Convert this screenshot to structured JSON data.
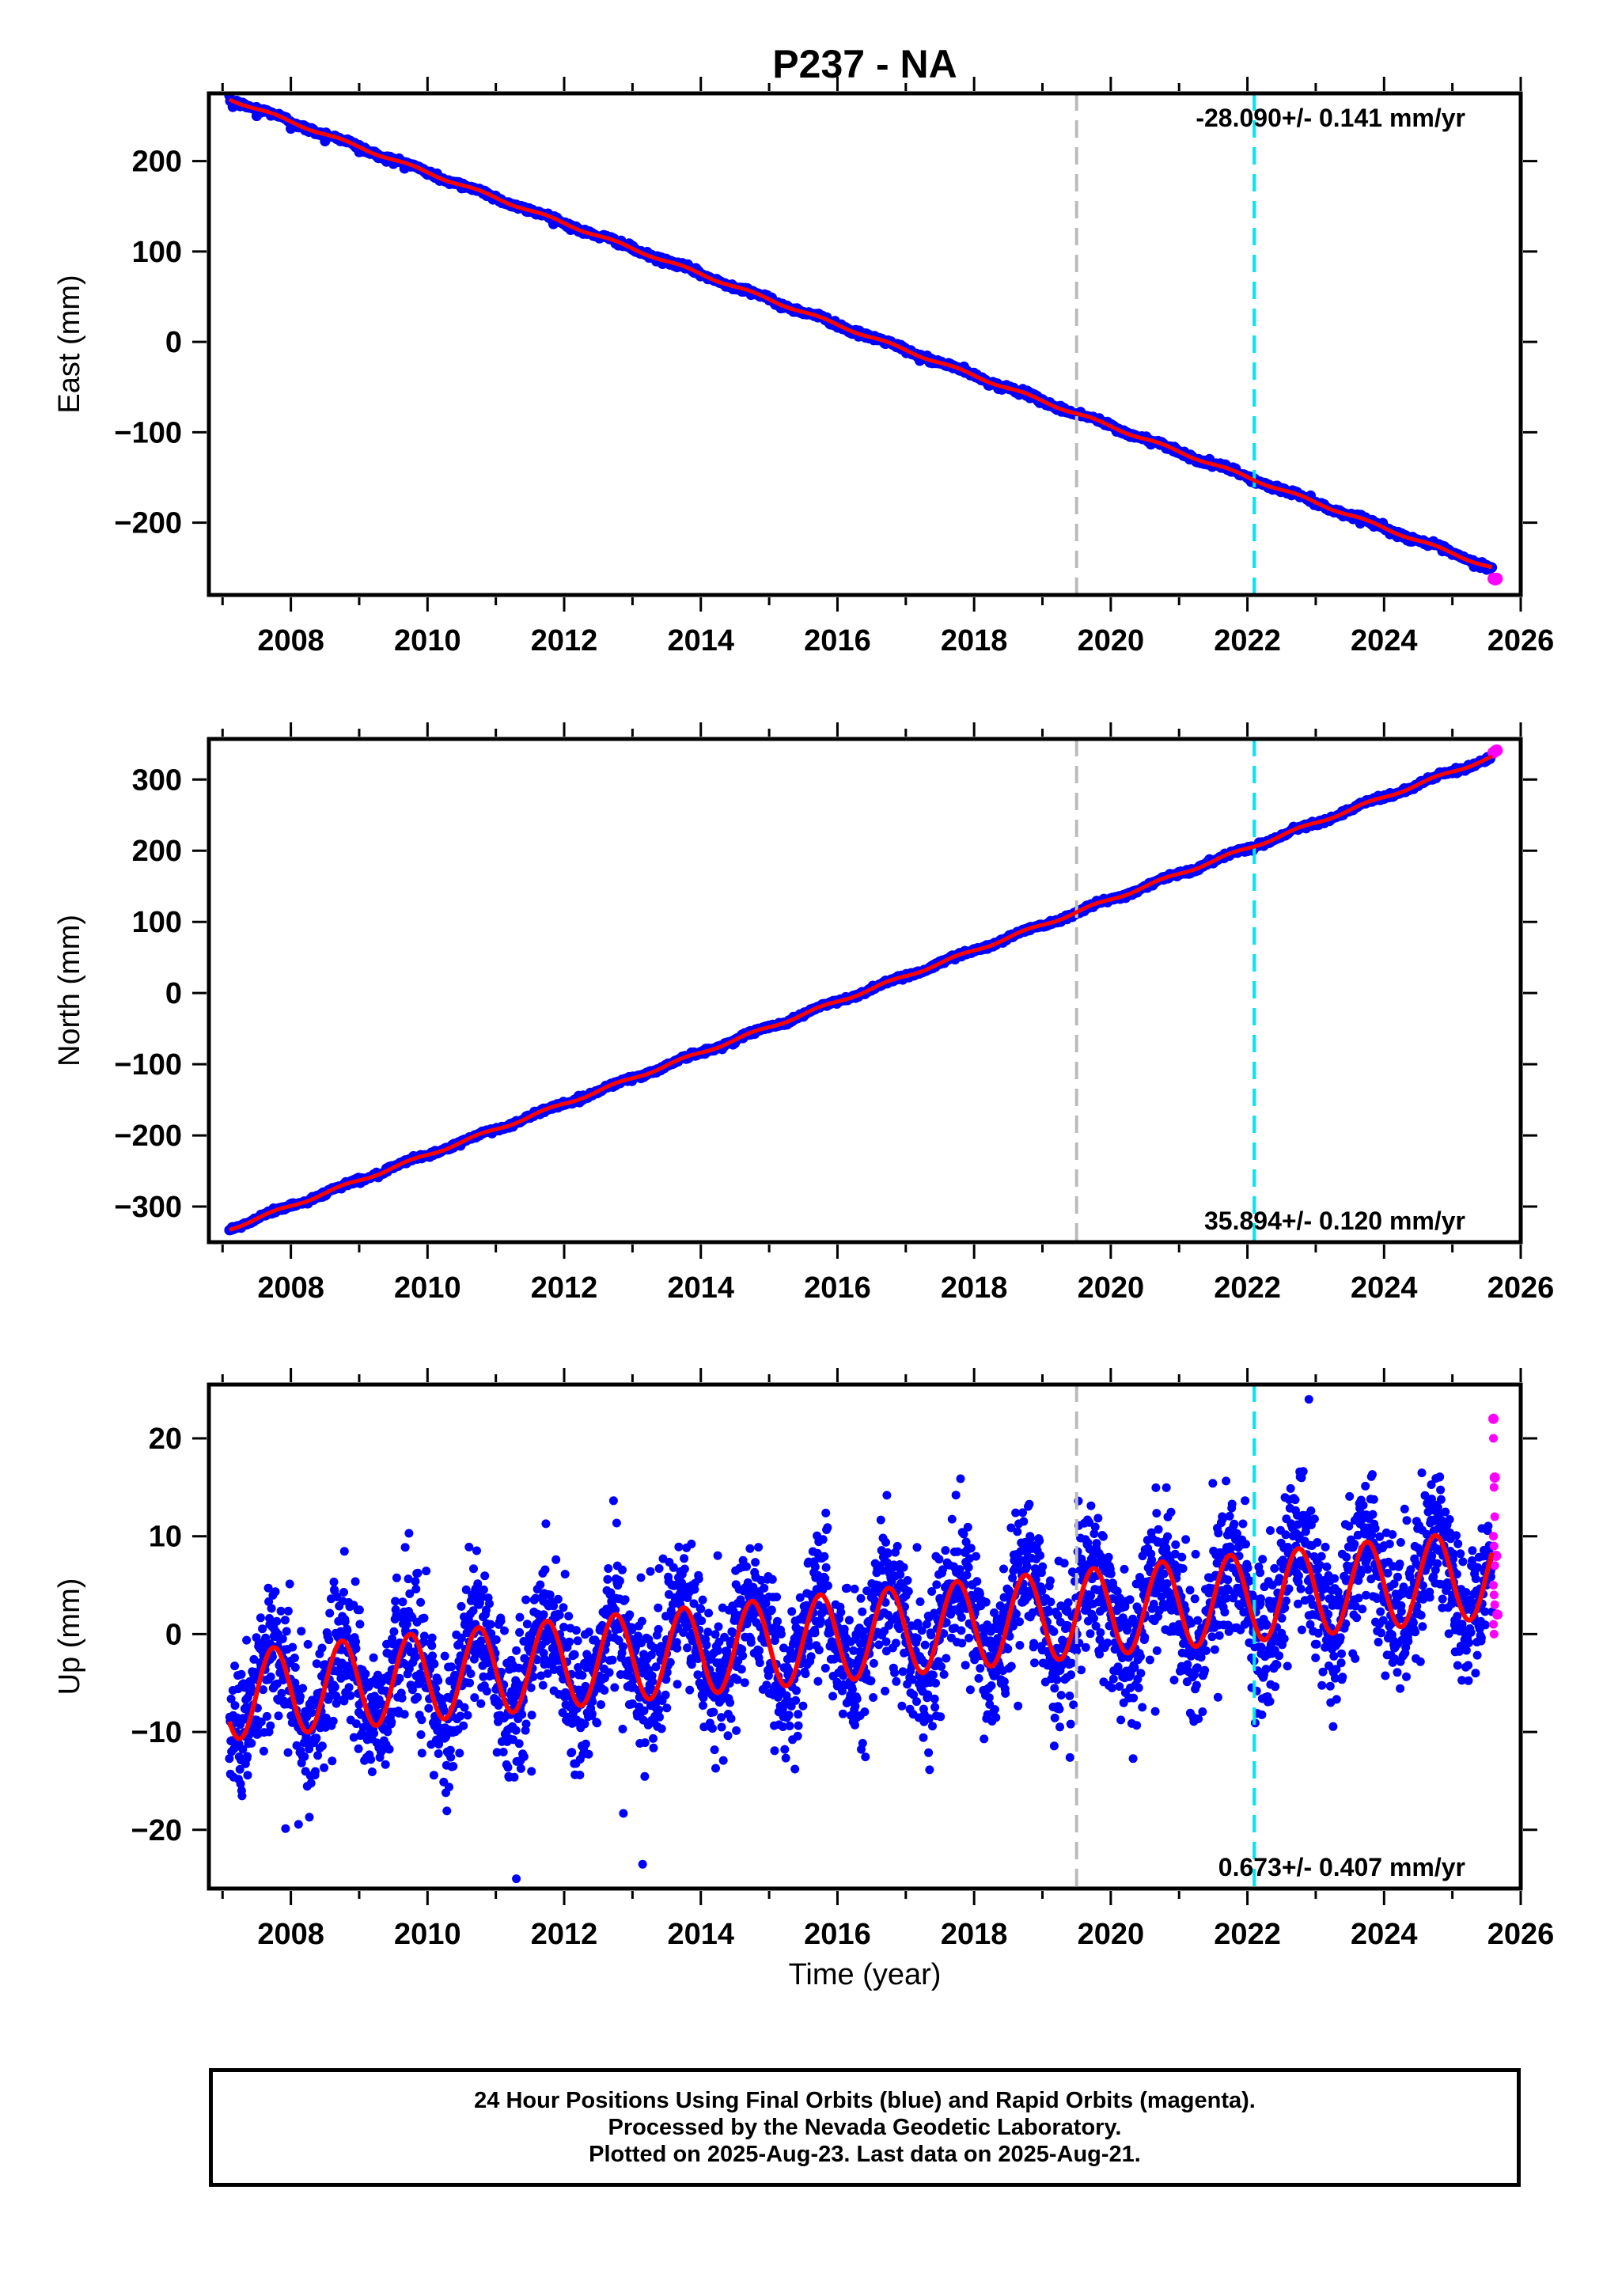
{
  "title": "P237 - NA",
  "xlabel": "Time (year)",
  "colors": {
    "final_orbits": "#0000ff",
    "rapid_orbits": "#ff00ff",
    "model_fit": "#ff0000",
    "marker_gray": "#bbbbbb",
    "marker_cyan": "#00e5ee"
  },
  "footer": {
    "line1": "24 Hour Positions Using Final Orbits (blue) and Rapid Orbits (magenta).",
    "line2": "Processed by the Nevada Geodetic Laboratory.",
    "line3": "Plotted on 2025-Aug-23. Last data on 2025-Aug-21."
  },
  "chart_data": [
    {
      "type": "scatter",
      "ylabel": "East (mm)",
      "xlim": [
        2006.8,
        2026.0
      ],
      "ylim": [
        -280,
        275
      ],
      "xticks": [
        2008,
        2010,
        2012,
        2014,
        2016,
        2018,
        2020,
        2022,
        2024,
        2026
      ],
      "yticks": [
        -200,
        -100,
        0,
        100,
        200
      ],
      "vertical_markers": [
        {
          "x": 2019.5,
          "color": "gray"
        },
        {
          "x": 2022.1,
          "color": "cyan"
        }
      ],
      "rate_label": "-28.090+/- 0.141 mm/yr",
      "rate_label_position": "top-right",
      "series": [
        {
          "role": "final_orbits",
          "x": [
            2007.15,
            2007.5,
            2008.0,
            2008.5,
            2009.0,
            2009.5,
            2010.0,
            2010.5,
            2011.0,
            2011.5,
            2012.0,
            2012.5,
            2013.0,
            2013.5,
            2014.0,
            2014.5,
            2015.0,
            2015.5,
            2016.0,
            2016.5,
            2017.0,
            2017.5,
            2018.0,
            2018.5,
            2019.0,
            2019.5,
            2020.0,
            2020.5,
            2021.0,
            2021.5,
            2022.0,
            2022.5,
            2023.0,
            2023.5,
            2024.0,
            2024.5,
            2025.0,
            2025.5
          ],
          "y": [
            260,
            250,
            236,
            222,
            210,
            197,
            185,
            170,
            158,
            144,
            130,
            116,
            102,
            88,
            75,
            60,
            46,
            33,
            19,
            5,
            -9,
            -23,
            -37,
            -51,
            -65,
            -79,
            -93,
            -107,
            -121,
            -135,
            -149,
            -163,
            -177,
            -191,
            -205,
            -219,
            -233,
            -252
          ]
        },
        {
          "role": "rapid_orbits",
          "x": [
            2025.6,
            2025.63,
            2025.65
          ],
          "y": [
            -262,
            -263,
            -262
          ]
        }
      ],
      "fit": {
        "type": "linear+seasonal",
        "slope": -28.09,
        "intercept_at_2016": 19,
        "annual_amplitude": 1.5
      }
    },
    {
      "type": "scatter",
      "ylabel": "North (mm)",
      "xlim": [
        2006.8,
        2026.0
      ],
      "ylim": [
        -350,
        357
      ],
      "xticks": [
        2008,
        2010,
        2012,
        2014,
        2016,
        2018,
        2020,
        2022,
        2024,
        2026
      ],
      "yticks": [
        -300,
        -200,
        -100,
        0,
        100,
        200,
        300
      ],
      "vertical_markers": [
        {
          "x": 2019.5,
          "color": "gray"
        },
        {
          "x": 2022.1,
          "color": "cyan"
        }
      ],
      "rate_label": "35.894+/- 0.120 mm/yr",
      "rate_label_position": "bottom-right",
      "series": [
        {
          "role": "final_orbits",
          "x": [
            2007.15,
            2007.5,
            2008.0,
            2008.5,
            2009.0,
            2009.5,
            2010.0,
            2010.5,
            2011.0,
            2011.5,
            2012.0,
            2012.5,
            2013.0,
            2013.5,
            2014.0,
            2014.5,
            2015.0,
            2015.5,
            2016.0,
            2016.5,
            2017.0,
            2017.5,
            2018.0,
            2018.5,
            2019.0,
            2019.5,
            2020.0,
            2020.5,
            2021.0,
            2021.5,
            2022.0,
            2022.5,
            2023.0,
            2023.5,
            2024.0,
            2024.5,
            2025.0,
            2025.5
          ],
          "y": [
            -332,
            -318,
            -299,
            -282,
            -264,
            -246,
            -229,
            -210,
            -193,
            -174,
            -156,
            -138,
            -121,
            -102,
            -84,
            -66,
            -49,
            -30,
            -12,
            6,
            23,
            41,
            59,
            77,
            95,
            113,
            131,
            148,
            166,
            184,
            202,
            220,
            238,
            256,
            273,
            291,
            309,
            330
          ]
        },
        {
          "role": "rapid_orbits",
          "x": [
            2025.6,
            2025.63,
            2025.65
          ],
          "y": [
            338,
            340,
            341
          ]
        }
      ],
      "fit": {
        "type": "linear+seasonal",
        "slope": 35.894,
        "intercept_at_2016": -12,
        "annual_amplitude": 2
      }
    },
    {
      "type": "scatter",
      "ylabel": "Up (mm)",
      "xlim": [
        2006.8,
        2026.0
      ],
      "ylim": [
        -26,
        25.5
      ],
      "xticks": [
        2008,
        2010,
        2012,
        2014,
        2016,
        2018,
        2020,
        2022,
        2024,
        2026
      ],
      "yticks": [
        -20,
        -10,
        0,
        10,
        20
      ],
      "vertical_markers": [
        {
          "x": 2019.5,
          "color": "gray"
        },
        {
          "x": 2022.1,
          "color": "cyan"
        }
      ],
      "rate_label": "0.673+/- 0.407 mm/yr",
      "rate_label_position": "bottom-right",
      "series": [
        {
          "role": "final_orbits",
          "x": [
            2007.2,
            2007.4,
            2007.7,
            2008.2,
            2008.5,
            2008.7,
            2009.2,
            2009.5,
            2009.7,
            2010.2,
            2010.5,
            2010.7,
            2011.2,
            2011.5,
            2011.7,
            2012.2,
            2012.5,
            2012.7,
            2013.2,
            2013.5,
            2013.7,
            2014.2,
            2014.5,
            2014.7,
            2015.2,
            2015.5,
            2015.7,
            2016.2,
            2016.5,
            2016.7,
            2017.2,
            2017.5,
            2017.7,
            2018.2,
            2018.5,
            2018.7,
            2019.2,
            2019.5,
            2019.7,
            2020.2,
            2020.5,
            2020.7,
            2021.2,
            2021.5,
            2021.7,
            2022.2,
            2022.5,
            2022.7,
            2023.2,
            2023.5,
            2023.7,
            2024.2,
            2024.5,
            2024.7,
            2025.2,
            2025.5
          ],
          "y": [
            -10,
            -6,
            -1,
            -10,
            -5,
            0,
            -9,
            -5,
            1,
            -8,
            -4,
            1,
            -8,
            -3,
            2,
            -7,
            -3,
            2,
            -6,
            -2,
            3,
            -6,
            -1,
            4,
            -5,
            0,
            4,
            -4,
            0,
            5,
            -4,
            1,
            5,
            -3,
            1,
            6,
            -3,
            2,
            6,
            -2,
            2,
            7,
            -2,
            3,
            7,
            -2,
            3,
            7,
            -1,
            3,
            8,
            -1,
            4,
            8,
            0,
            5
          ],
          "range_min": -25,
          "range_max": 24
        },
        {
          "role": "rapid_orbits",
          "x": [
            2025.6,
            2025.62,
            2025.64,
            2025.66
          ],
          "y": [
            22,
            16,
            8,
            2
          ]
        }
      ],
      "fit": {
        "type": "linear+seasonal",
        "slope": 0.673,
        "intercept_at_2016": -0.3,
        "annual_amplitude": 4.5
      }
    }
  ]
}
